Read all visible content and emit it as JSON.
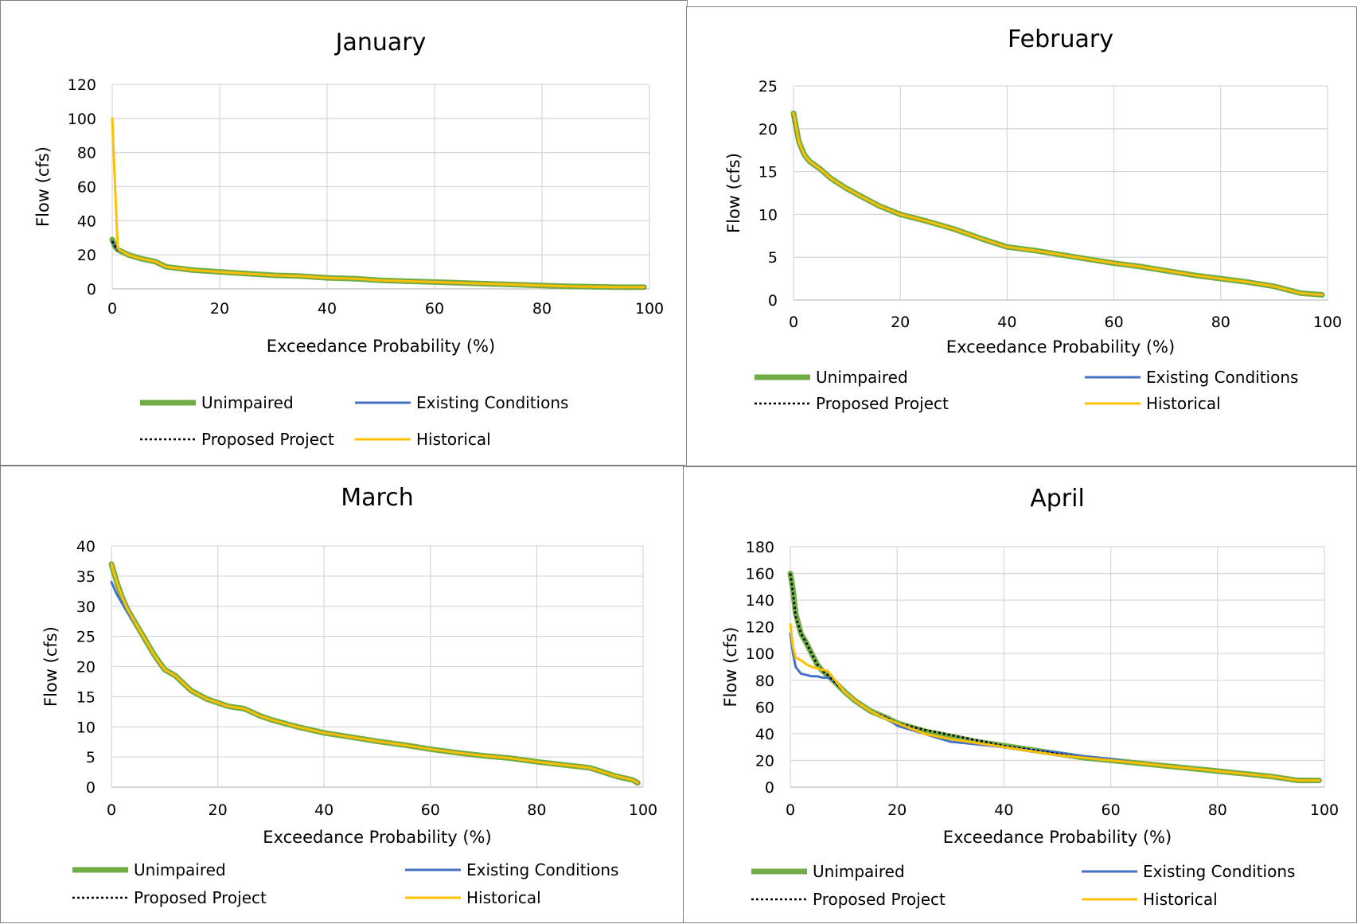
{
  "legend": {
    "unimpaired": "Unimpaired",
    "existing": "Existing Conditions",
    "proposed": "Proposed Project",
    "historical": "Historical"
  },
  "colors": {
    "unimpaired": "#70ad47",
    "existing": "#4472c4",
    "proposed": "#000000",
    "historical": "#ffc000"
  },
  "chart_data": [
    {
      "type": "line",
      "title": "January",
      "xlabel": "Exceedance Probability (%)",
      "ylabel": "Flow (cfs)",
      "xlim": [
        0,
        100
      ],
      "ylim": [
        0,
        120
      ],
      "xticks": [
        "0",
        "20",
        "40",
        "60",
        "80",
        "100"
      ],
      "yticks": [
        "0",
        "20",
        "40",
        "60",
        "80",
        "100",
        "120"
      ],
      "grid": true,
      "legend_position": "bottom",
      "series": [
        {
          "name": "Unimpaired",
          "x": [
            0,
            0.5,
            1,
            3,
            5,
            8,
            10,
            15,
            20,
            25,
            30,
            35,
            40,
            45,
            50,
            55,
            60,
            65,
            70,
            75,
            80,
            85,
            90,
            95,
            99
          ],
          "y": [
            29,
            25,
            23,
            20,
            18,
            16,
            13,
            11,
            10,
            9,
            8,
            7.5,
            6.5,
            6,
            5,
            4.5,
            4,
            3.5,
            3,
            2.5,
            2,
            1.5,
            1.2,
            1,
            1
          ]
        },
        {
          "name": "Existing Conditions",
          "x": [
            0,
            0.5,
            1,
            3,
            5,
            8,
            10,
            15,
            20,
            25,
            30,
            35,
            40,
            45,
            50,
            55,
            60,
            65,
            70,
            75,
            80,
            85,
            90,
            95,
            99
          ],
          "y": [
            28,
            25,
            23,
            20,
            18,
            16,
            13,
            11,
            10,
            9,
            8,
            7.5,
            6.5,
            6,
            5,
            4.5,
            4,
            3.5,
            3,
            2.5,
            2,
            1.5,
            1.2,
            1,
            1
          ]
        },
        {
          "name": "Proposed Project",
          "x": [
            0,
            0.5,
            1,
            3,
            5,
            8,
            10,
            15,
            20,
            25,
            30,
            35,
            40,
            45,
            50,
            55,
            60,
            65,
            70,
            75,
            80,
            85,
            90,
            95,
            99
          ],
          "y": [
            28,
            25,
            23,
            20,
            18,
            16,
            13,
            11,
            10,
            9,
            8,
            7.5,
            6.5,
            6,
            5,
            4.5,
            4,
            3.5,
            3,
            2.5,
            2,
            1.5,
            1.2,
            1,
            1
          ]
        },
        {
          "name": "Historical",
          "x": [
            0,
            1,
            1.2,
            3,
            5,
            8,
            10,
            15,
            20,
            25,
            30,
            35,
            40,
            45,
            50,
            55,
            60,
            65,
            70,
            75,
            80,
            85,
            90,
            95,
            99
          ],
          "y": [
            100,
            25,
            23,
            20,
            18,
            16,
            13,
            11,
            10,
            9,
            8,
            7.5,
            6.5,
            6,
            5,
            4.5,
            4,
            3.5,
            3,
            2.5,
            2,
            1.5,
            1.2,
            1,
            1
          ]
        }
      ]
    },
    {
      "type": "line",
      "title": "February",
      "xlabel": "Exceedance Probability (%)",
      "ylabel": "Flow (cfs)",
      "xlim": [
        0,
        100
      ],
      "ylim": [
        0,
        25
      ],
      "xticks": [
        "0",
        "20",
        "40",
        "60",
        "80",
        "100"
      ],
      "yticks": [
        "0",
        "5",
        "10",
        "15",
        "20",
        "25"
      ],
      "grid": true,
      "legend_position": "bottom",
      "series": [
        {
          "name": "Unimpaired",
          "x": [
            0,
            1,
            2,
            3,
            5,
            7,
            10,
            13,
            16,
            20,
            25,
            30,
            35,
            40,
            45,
            50,
            55,
            60,
            65,
            70,
            75,
            80,
            85,
            90,
            95,
            99
          ],
          "y": [
            21.8,
            18.5,
            17,
            16.2,
            15.3,
            14.2,
            13,
            12,
            11,
            10,
            9.2,
            8.3,
            7.2,
            6.2,
            5.8,
            5.3,
            4.8,
            4.3,
            3.9,
            3.4,
            2.9,
            2.5,
            2.1,
            1.6,
            0.8,
            0.6
          ]
        },
        {
          "name": "Existing Conditions",
          "x": [
            0,
            1,
            2,
            3,
            5,
            7,
            10,
            13,
            16,
            20,
            25,
            30,
            35,
            40,
            45,
            50,
            55,
            60,
            65,
            70,
            75,
            80,
            85,
            90,
            95,
            99
          ],
          "y": [
            21.5,
            18.5,
            17,
            16.2,
            15.3,
            14.2,
            13,
            12,
            11,
            10,
            9.2,
            8.3,
            7.2,
            6.2,
            5.8,
            5.3,
            4.8,
            4.3,
            3.9,
            3.4,
            2.9,
            2.5,
            2.1,
            1.6,
            0.8,
            0.6
          ]
        },
        {
          "name": "Proposed Project",
          "x": [
            0,
            1,
            2,
            3,
            5,
            7,
            10,
            13,
            16,
            20,
            25,
            30,
            35,
            40,
            45,
            50,
            55,
            60,
            65,
            70,
            75,
            80,
            85,
            90,
            95,
            99
          ],
          "y": [
            21.5,
            18.5,
            17,
            16.2,
            15.3,
            14.2,
            13,
            12,
            11,
            10,
            9.2,
            8.3,
            7.2,
            6.2,
            5.8,
            5.3,
            4.8,
            4.3,
            3.9,
            3.4,
            2.9,
            2.5,
            2.1,
            1.6,
            0.8,
            0.6
          ]
        },
        {
          "name": "Historical",
          "x": [
            0,
            1,
            2,
            3,
            5,
            7,
            10,
            13,
            16,
            20,
            25,
            30,
            35,
            40,
            45,
            50,
            55,
            60,
            65,
            70,
            75,
            80,
            85,
            90,
            95,
            99
          ],
          "y": [
            21.8,
            18.5,
            17,
            16.2,
            15.3,
            14.2,
            13,
            12,
            11,
            10,
            9.2,
            8.3,
            7.2,
            6.2,
            5.8,
            5.3,
            4.8,
            4.3,
            3.9,
            3.4,
            2.9,
            2.5,
            2.1,
            1.6,
            0.8,
            0.6
          ]
        }
      ]
    },
    {
      "type": "line",
      "title": "March",
      "xlabel": "Exceedance Probability (%)",
      "ylabel": "Flow (cfs)",
      "xlim": [
        0,
        100
      ],
      "ylim": [
        0,
        40
      ],
      "xticks": [
        "0",
        "20",
        "40",
        "60",
        "80",
        "100"
      ],
      "yticks": [
        "0",
        "5",
        "10",
        "15",
        "20",
        "25",
        "30",
        "35",
        "40"
      ],
      "grid": true,
      "legend_position": "bottom",
      "series": [
        {
          "name": "Unimpaired",
          "x": [
            0,
            1,
            2,
            3,
            5,
            8,
            10,
            12,
            15,
            18,
            20,
            22,
            25,
            28,
            30,
            35,
            40,
            45,
            50,
            55,
            60,
            65,
            70,
            75,
            80,
            85,
            90,
            95,
            98,
            99
          ],
          "y": [
            37,
            34,
            31.5,
            29.5,
            26.5,
            22,
            19.5,
            18.5,
            16,
            14.6,
            14,
            13.4,
            13,
            11.8,
            11.2,
            10,
            9,
            8.3,
            7.6,
            7,
            6.3,
            5.7,
            5.2,
            4.8,
            4.2,
            3.7,
            3.2,
            1.8,
            1.2,
            0.7
          ]
        },
        {
          "name": "Existing Conditions",
          "x": [
            0,
            1,
            2,
            3,
            5,
            8,
            10,
            12,
            15,
            18,
            20,
            22,
            25,
            28,
            30,
            35,
            40,
            45,
            50,
            55,
            60,
            65,
            70,
            75,
            80,
            85,
            90,
            95,
            98,
            99
          ],
          "y": [
            34,
            32,
            30.5,
            29,
            26.5,
            22,
            19.5,
            18.5,
            16,
            14.6,
            14,
            13.4,
            13,
            11.8,
            11.2,
            10,
            9,
            8.3,
            7.6,
            7,
            6.3,
            5.7,
            5.2,
            4.8,
            4.2,
            3.7,
            3.2,
            1.8,
            1.2,
            0.7
          ]
        },
        {
          "name": "Proposed Project",
          "x": [
            0,
            1,
            2,
            3,
            5,
            8,
            10,
            12,
            15,
            18,
            20,
            22,
            25,
            28,
            30,
            35,
            40,
            45,
            50,
            55,
            60,
            65,
            70,
            75,
            80,
            85,
            90,
            95,
            98,
            99
          ],
          "y": [
            37,
            34,
            31.5,
            29.5,
            26.5,
            22,
            19.5,
            18.5,
            16,
            14.6,
            14,
            13.4,
            13,
            11.8,
            11.2,
            10,
            9,
            8.3,
            7.6,
            7,
            6.3,
            5.7,
            5.2,
            4.8,
            4.2,
            3.7,
            3.2,
            1.8,
            1.2,
            0.7
          ]
        },
        {
          "name": "Historical",
          "x": [
            0,
            1,
            2,
            3,
            5,
            8,
            10,
            12,
            15,
            18,
            20,
            22,
            25,
            28,
            30,
            35,
            40,
            45,
            50,
            55,
            60,
            65,
            70,
            75,
            80,
            85,
            90,
            95,
            98,
            99
          ],
          "y": [
            37,
            34,
            31.5,
            29.5,
            26.5,
            22,
            19.5,
            18.5,
            16,
            14.6,
            14,
            13.4,
            13,
            11.8,
            11.2,
            10,
            9,
            8.3,
            7.6,
            7,
            6.3,
            5.7,
            5.2,
            4.8,
            4.2,
            3.7,
            3.2,
            1.8,
            1.2,
            0.7
          ]
        }
      ]
    },
    {
      "type": "line",
      "title": "April",
      "xlabel": "Exceedance Probability (%)",
      "ylabel": "Flow (cfs)",
      "xlim": [
        0,
        100
      ],
      "ylim": [
        0,
        180
      ],
      "xticks": [
        "0",
        "20",
        "40",
        "60",
        "80",
        "100"
      ],
      "yticks": [
        "0",
        "20",
        "40",
        "60",
        "80",
        "100",
        "120",
        "140",
        "160",
        "180"
      ],
      "grid": true,
      "legend_position": "bottom",
      "series": [
        {
          "name": "Unimpaired",
          "x": [
            0,
            0.5,
            1,
            2,
            3,
            4,
            5,
            6,
            7,
            8,
            10,
            12,
            15,
            18,
            20,
            25,
            30,
            35,
            40,
            45,
            50,
            55,
            60,
            65,
            70,
            75,
            80,
            85,
            90,
            95,
            99
          ],
          "y": [
            160,
            148,
            130,
            115,
            108,
            100,
            92,
            87,
            84,
            80,
            72,
            65,
            57,
            52,
            48,
            42,
            38,
            34,
            31,
            28,
            25,
            22,
            20,
            18,
            16,
            14,
            12,
            10,
            8,
            5,
            5
          ]
        },
        {
          "name": "Existing Conditions",
          "x": [
            0,
            0.5,
            1,
            2,
            3,
            4,
            5,
            6,
            7,
            8,
            10,
            12,
            15,
            18,
            20,
            25,
            30,
            35,
            40,
            45,
            50,
            55,
            60,
            65,
            70,
            75,
            80,
            85,
            90,
            95,
            99
          ],
          "y": [
            115,
            100,
            90,
            85,
            84,
            83,
            83,
            82,
            82,
            80,
            72,
            65,
            57,
            52,
            46,
            40,
            34,
            32,
            30,
            28,
            26,
            23,
            21,
            18,
            16,
            14,
            12,
            10,
            8,
            5,
            5
          ]
        },
        {
          "name": "Proposed Project",
          "x": [
            0,
            0.5,
            1,
            2,
            3,
            4,
            5,
            6,
            7,
            8,
            10,
            12,
            15,
            18,
            20,
            25,
            30,
            35,
            40,
            45,
            50,
            55,
            60,
            65,
            70,
            75,
            80,
            85,
            90,
            95,
            99
          ],
          "y": [
            160,
            145,
            128,
            115,
            108,
            100,
            92,
            87,
            84,
            80,
            72,
            65,
            57,
            52,
            48,
            43,
            39,
            35,
            31,
            28,
            25,
            22,
            20,
            18,
            16,
            14,
            12,
            10,
            8,
            5,
            5
          ]
        },
        {
          "name": "Historical",
          "x": [
            0,
            0.5,
            1,
            2,
            3,
            4,
            5,
            6,
            7,
            8,
            10,
            12,
            15,
            18,
            20,
            25,
            30,
            35,
            40,
            45,
            50,
            55,
            60,
            65,
            70,
            75,
            80,
            85,
            90,
            95,
            99
          ],
          "y": [
            122,
            105,
            97,
            95,
            92,
            90,
            89,
            88,
            87,
            82,
            72,
            65,
            57,
            51,
            48,
            40,
            36,
            33,
            30,
            27,
            24,
            22,
            20,
            18,
            16,
            14,
            12,
            10,
            8,
            5,
            5
          ]
        }
      ]
    }
  ]
}
